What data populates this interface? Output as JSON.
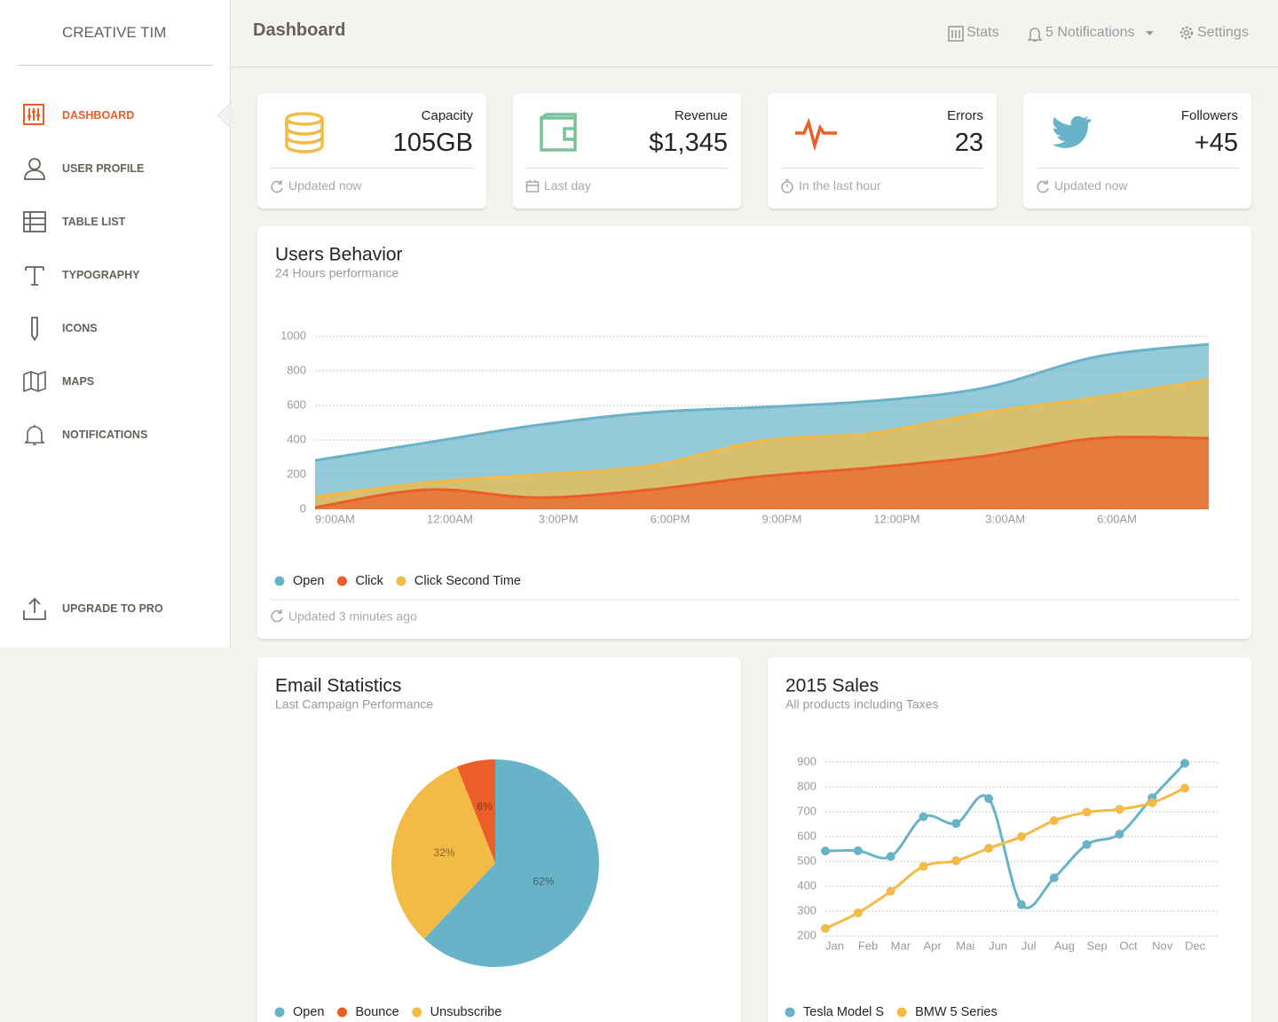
{
  "sidebar": {
    "brand": "CREATIVE TIM",
    "menu": [
      "DASHBOARD",
      "USER PROFILE",
      "TABLE LIST",
      "TYPOGRAPHY",
      "ICONS",
      "MAPS",
      "NOTIFICATIONS"
    ],
    "upgrade": "UPGRADE TO PRO"
  },
  "navbar": {
    "title": "Dashboard",
    "links": [
      "Stats",
      "5 Notifications",
      "Settings"
    ]
  },
  "stats": [
    {
      "title": "Capacity",
      "value": "105GB",
      "footer": "Updated now"
    },
    {
      "title": "Revenue",
      "value": "$1,345",
      "footer": "Last day"
    },
    {
      "title": "Errors",
      "value": "23",
      "footer": "In the last hour"
    },
    {
      "title": "Followers",
      "value": "+45",
      "footer": "Updated now"
    }
  ],
  "chart_data": [
    {
      "type": "area",
      "title": "Users Behavior",
      "subtitle": "24 Hours performance",
      "categories": [
        "9:00AM",
        "12:00AM",
        "3:00PM",
        "6:00PM",
        "9:00PM",
        "12:00PM",
        "3:00AM",
        "6:00AM",
        null
      ],
      "series": [
        {
          "name": "Open",
          "color": "#68b3c8",
          "values": [
            282,
            385,
            487,
            559,
            590,
            626,
            703,
            882,
            954
          ]
        },
        {
          "name": "Click",
          "color": "#eb5e28",
          "values": [
            10,
            113,
            67,
            113,
            190,
            241,
            308,
            410,
            410
          ]
        },
        {
          "name": "Click Second Time",
          "color": "#f3bb45",
          "values": [
            72,
            154,
            200,
            251,
            395,
            441,
            559,
            646,
            749
          ]
        }
      ],
      "ylim": [
        0,
        1000
      ],
      "yticks": [
        0,
        200,
        400,
        600,
        800,
        1000
      ],
      "grid": true,
      "footer": "Updated 3 minutes ago"
    },
    {
      "type": "pie",
      "title": "Email Statistics",
      "subtitle": "Last Campaign Performance",
      "categories": [
        "Open",
        "Bounce",
        "Unsubscribe"
      ],
      "values": [
        62,
        6,
        32
      ],
      "value_labels": [
        "62%",
        "6%",
        "32%"
      ],
      "colors": [
        "#68b3c8",
        "#eb5e28",
        "#f3bb45"
      ]
    },
    {
      "type": "line",
      "title": "2015 Sales",
      "subtitle": "All products including Taxes",
      "categories": [
        "Jan",
        "Feb",
        "Mar",
        "Apr",
        "Mai",
        "Jun",
        "Jul",
        "Aug",
        "Sep",
        "Oct",
        "Nov",
        "Dec"
      ],
      "series": [
        {
          "name": "Tesla Model S",
          "color": "#68b3c8",
          "values": [
            542,
            543,
            520,
            680,
            653,
            753,
            326,
            434,
            568,
            610,
            756,
            895
          ]
        },
        {
          "name": "BMW 5 Series",
          "color": "#f3bb45",
          "values": [
            230,
            293,
            380,
            480,
            503,
            553,
            600,
            664,
            698,
            710,
            736,
            795
          ]
        }
      ],
      "ylim": [
        200,
        900
      ],
      "yticks": [
        200,
        300,
        400,
        500,
        600,
        700,
        800,
        900
      ],
      "grid": true
    }
  ]
}
